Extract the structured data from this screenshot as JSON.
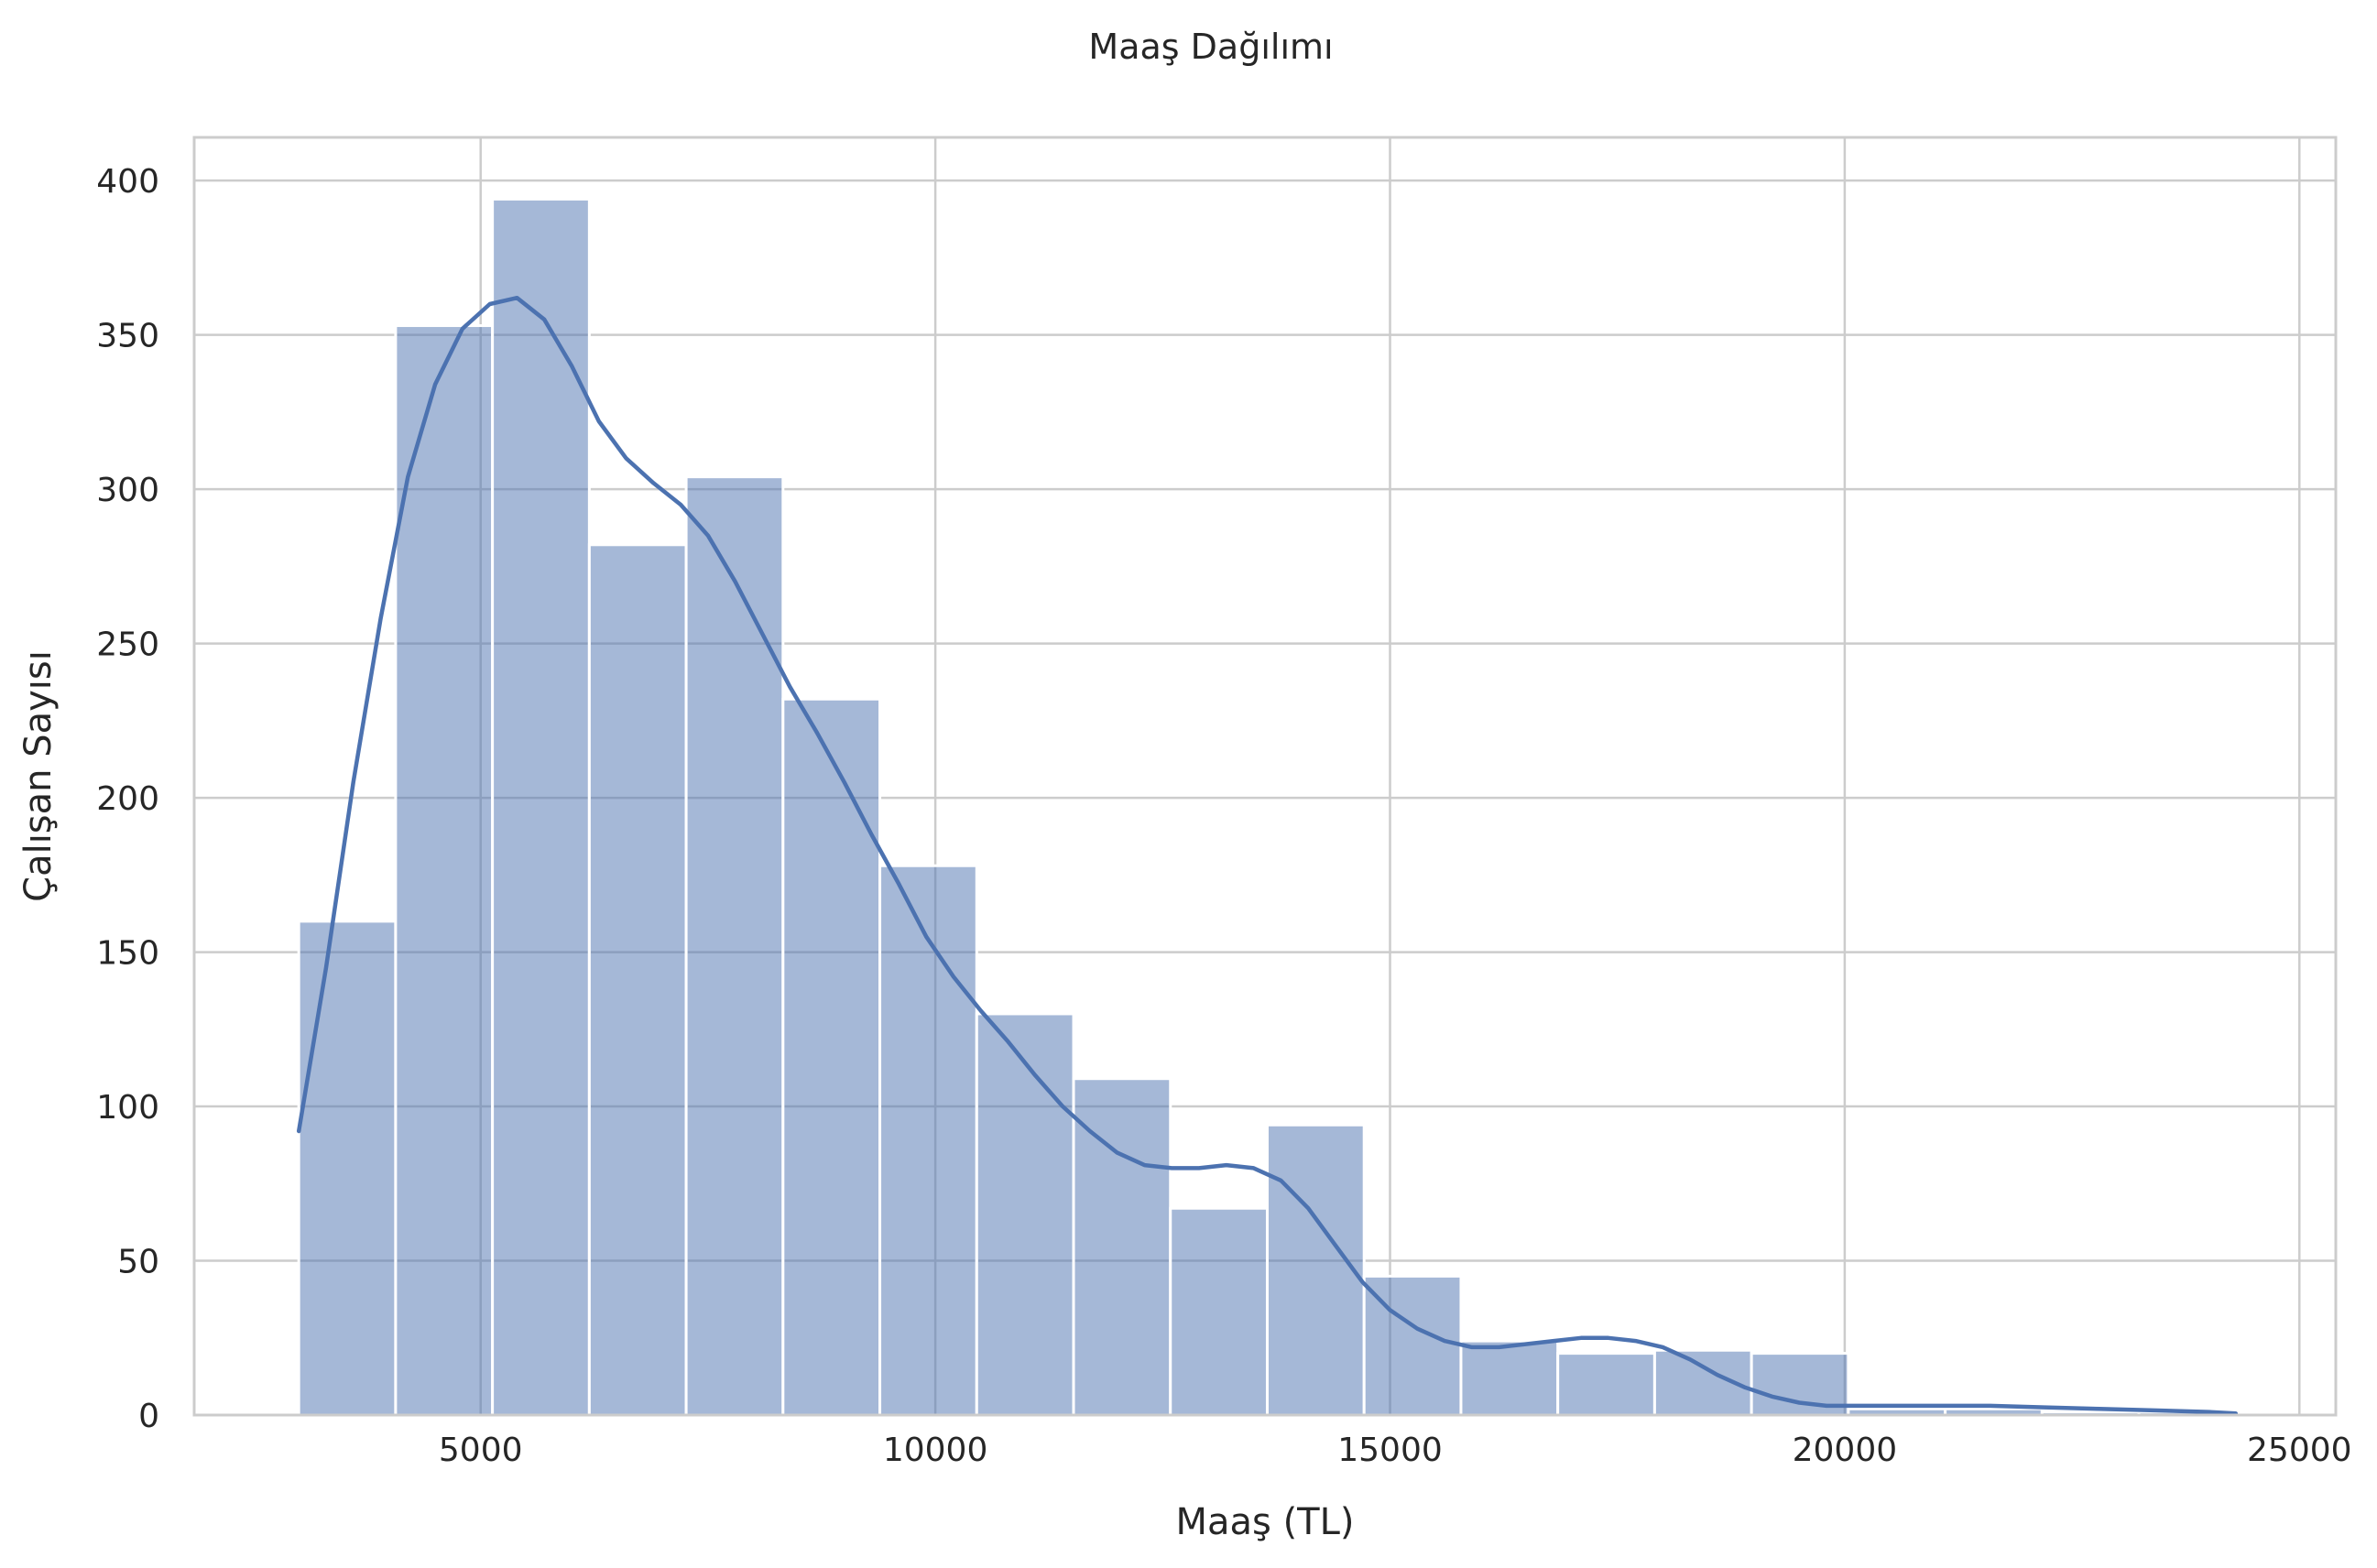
{
  "chart_data": {
    "type": "bar",
    "subtype": "histogram_with_kde",
    "title": "Maaş Dağılımı",
    "xlabel": "Maaş (TL)",
    "ylabel": "Çalışan Sayısı",
    "xlim": [
      1850,
      25400
    ],
    "ylim": [
      0,
      414
    ],
    "xticks": [
      5000,
      10000,
      15000,
      20000,
      25000
    ],
    "yticks": [
      0,
      50,
      100,
      150,
      200,
      250,
      300,
      350,
      400
    ],
    "grid": true,
    "color": "#4c72b0",
    "bins": [
      {
        "x0": 3000,
        "x1": 4065,
        "count": 160
      },
      {
        "x0": 4065,
        "x1": 5130,
        "count": 353
      },
      {
        "x0": 5130,
        "x1": 6195,
        "count": 394
      },
      {
        "x0": 6195,
        "x1": 7260,
        "count": 282
      },
      {
        "x0": 7260,
        "x1": 8325,
        "count": 304
      },
      {
        "x0": 8325,
        "x1": 9390,
        "count": 232
      },
      {
        "x0": 9390,
        "x1": 10455,
        "count": 178
      },
      {
        "x0": 10455,
        "x1": 11520,
        "count": 130
      },
      {
        "x0": 11520,
        "x1": 12585,
        "count": 109
      },
      {
        "x0": 12585,
        "x1": 13650,
        "count": 67
      },
      {
        "x0": 13650,
        "x1": 14715,
        "count": 94
      },
      {
        "x0": 14715,
        "x1": 15780,
        "count": 45
      },
      {
        "x0": 15780,
        "x1": 16845,
        "count": 24
      },
      {
        "x0": 16845,
        "x1": 17910,
        "count": 20
      },
      {
        "x0": 17910,
        "x1": 18975,
        "count": 21
      },
      {
        "x0": 18975,
        "x1": 20040,
        "count": 20
      },
      {
        "x0": 20040,
        "x1": 21105,
        "count": 2
      },
      {
        "x0": 21105,
        "x1": 22170,
        "count": 2
      },
      {
        "x0": 22170,
        "x1": 23235,
        "count": 1
      },
      {
        "x0": 23235,
        "x1": 24300,
        "count": 1
      }
    ],
    "kde": {
      "x": [
        3000,
        3300,
        3600,
        3900,
        4200,
        4500,
        4800,
        5100,
        5400,
        5700,
        6000,
        6300,
        6600,
        6900,
        7200,
        7500,
        7800,
        8100,
        8400,
        8700,
        9000,
        9300,
        9600,
        9900,
        10200,
        10500,
        10800,
        11100,
        11400,
        11700,
        12000,
        12300,
        12600,
        12900,
        13200,
        13500,
        13800,
        14100,
        14400,
        14700,
        15000,
        15300,
        15600,
        15900,
        16200,
        16500,
        16800,
        17100,
        17400,
        17700,
        18000,
        18300,
        18600,
        18900,
        19200,
        19500,
        19800,
        20100,
        20400,
        20700,
        21000,
        21600,
        22200,
        22800,
        23400,
        24000,
        24300
      ],
      "y": [
        92,
        145,
        205,
        258,
        304,
        334,
        352,
        360,
        362,
        355,
        340,
        322,
        310,
        302,
        295,
        285,
        270,
        253,
        236,
        221,
        205,
        188,
        172,
        155,
        142,
        131,
        121,
        110,
        100,
        92,
        85,
        81,
        80,
        80,
        81,
        80,
        76,
        67,
        55,
        43,
        34,
        28,
        24,
        22,
        22,
        23,
        24,
        25,
        25,
        24,
        22,
        18,
        13,
        9,
        6,
        4,
        3,
        3,
        3,
        3,
        3,
        3,
        2.5,
        2,
        1.5,
        1,
        0.5
      ]
    }
  }
}
